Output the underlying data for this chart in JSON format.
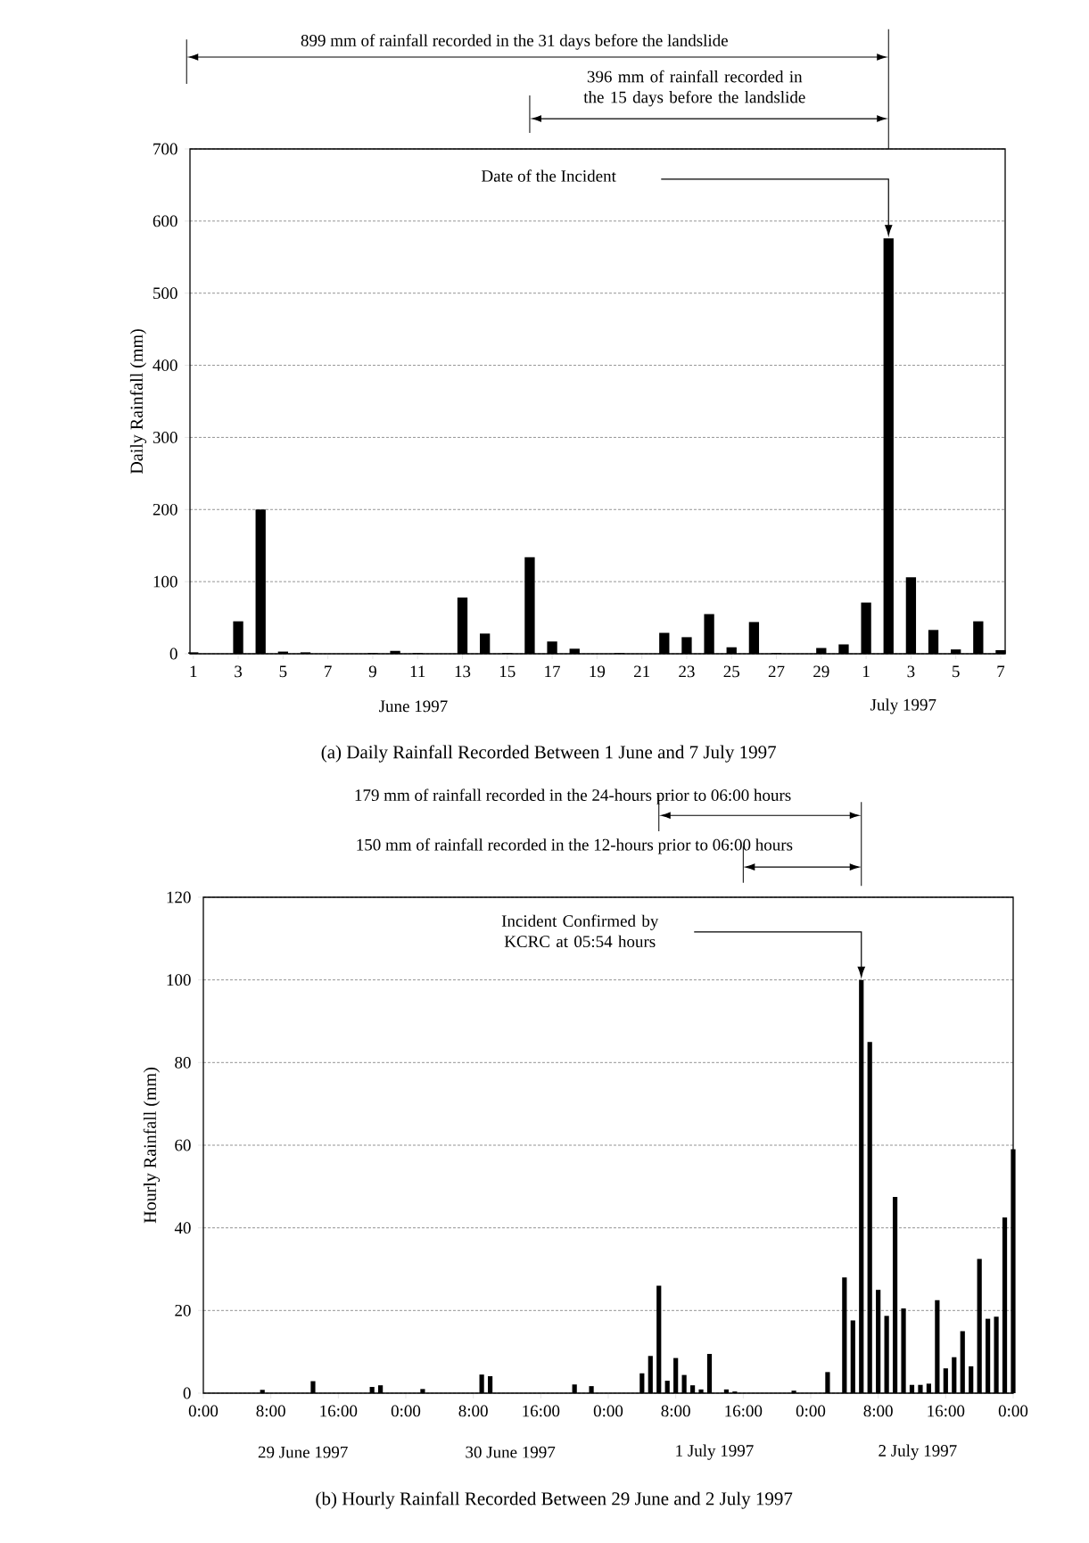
{
  "chart_data": [
    {
      "type": "bar",
      "title": "(a) Daily Rainfall Recorded Between 1 June and 7 July 1997",
      "ylabel": "Daily Rainfall (mm)",
      "categories": [
        "1",
        null,
        "3",
        null,
        "5",
        null,
        "7",
        null,
        "9",
        null,
        "11",
        null,
        "13",
        null,
        "15",
        null,
        "17",
        null,
        "19",
        null,
        "21",
        null,
        "23",
        null,
        "25",
        null,
        "27",
        null,
        "29",
        null,
        "1",
        null,
        "3",
        null,
        "5",
        null,
        "7"
      ],
      "values": [
        2,
        0,
        45,
        200,
        3,
        2,
        0,
        0,
        1,
        4,
        1,
        0,
        78,
        28,
        1,
        134,
        17,
        7,
        0,
        1,
        0,
        29,
        23,
        55,
        9,
        44,
        1,
        0,
        8,
        13,
        71,
        576,
        106,
        33,
        6,
        45,
        5
      ],
      "color": "#000000",
      "ylim": [
        0,
        700
      ],
      "yticks": [
        0,
        100,
        200,
        300,
        400,
        500,
        600,
        700
      ],
      "grid": "y",
      "annotations": [
        "899 mm of rainfall recorded in the 31 days before the landslide",
        "396 mm of rainfall recorded in the 15 days before the landslide",
        "Date of the Incident",
        "June 1997",
        "July 1997"
      ]
    },
    {
      "type": "bar",
      "title": "(b) Hourly Rainfall Recorded Between 29 June and 2 July 1997",
      "ylabel": "Hourly Rainfall (mm)",
      "x": [
        "1997-06-29T07:00",
        "1997-06-29T13:00",
        "1997-06-29T20:00",
        "1997-06-29T21:00",
        "1997-06-30T02:00",
        "1997-06-30T09:00",
        "1997-06-30T10:00",
        "1997-06-30T20:00",
        "1997-06-30T22:00",
        "1997-07-01T04:00",
        "1997-07-01T05:00",
        "1997-07-01T06:00",
        "1997-07-01T07:00",
        "1997-07-01T08:00",
        "1997-07-01T09:00",
        "1997-07-01T10:00",
        "1997-07-01T11:00",
        "1997-07-01T12:00",
        "1997-07-01T14:00",
        "1997-07-01T15:00",
        "1997-07-01T22:00",
        "1997-07-02T02:00",
        "1997-07-02T04:00",
        "1997-07-02T05:00",
        "1997-07-02T06:00",
        "1997-07-02T07:00",
        "1997-07-02T08:00",
        "1997-07-02T09:00",
        "1997-07-02T10:00",
        "1997-07-02T11:00",
        "1997-07-02T12:00",
        "1997-07-02T13:00",
        "1997-07-02T14:00",
        "1997-07-02T15:00",
        "1997-07-02T16:00",
        "1997-07-02T17:00",
        "1997-07-02T18:00",
        "1997-07-02T19:00",
        "1997-07-02T20:00",
        "1997-07-02T21:00",
        "1997-07-02T22:00",
        "1997-07-02T23:00",
        "1997-07-03T00:00"
      ],
      "values": [
        0.8,
        2.9,
        1.5,
        1.9,
        1,
        4.5,
        4.1,
        2.1,
        1.7,
        4.8,
        9,
        26,
        3,
        8.5,
        4.4,
        1.9,
        0.9,
        9.5,
        0.9,
        0.4,
        0.6,
        5.1,
        28,
        17.6,
        100,
        85,
        25,
        18.7,
        47.5,
        20.5,
        2,
        2,
        2.3,
        22.5,
        6,
        8.7,
        15,
        6.5,
        32.5,
        18,
        18.5,
        42.5,
        59
      ],
      "color": "#000000",
      "xlim": [
        "1997-06-29T00:00",
        "1997-07-03T00:00"
      ],
      "xticks": [
        {
          "value": "1997-06-29T00:00",
          "label": "0:00"
        },
        {
          "value": "1997-06-29T08:00",
          "label": "8:00"
        },
        {
          "value": "1997-06-29T16:00",
          "label": "16:00"
        },
        {
          "value": "1997-06-30T00:00",
          "label": "0:00"
        },
        {
          "value": "1997-06-30T08:00",
          "label": "8:00"
        },
        {
          "value": "1997-06-30T16:00",
          "label": "16:00"
        },
        {
          "value": "1997-07-01T00:00",
          "label": "0:00"
        },
        {
          "value": "1997-07-01T08:00",
          "label": "8:00"
        },
        {
          "value": "1997-07-01T16:00",
          "label": "16:00"
        },
        {
          "value": "1997-07-02T00:00",
          "label": "0:00"
        },
        {
          "value": "1997-07-02T08:00",
          "label": "8:00"
        },
        {
          "value": "1997-07-02T16:00",
          "label": "16:00"
        },
        {
          "value": "1997-07-03T00:00",
          "label": "0:00"
        }
      ],
      "ylim": [
        0,
        120
      ],
      "yticks": [
        0,
        20,
        40,
        60,
        80,
        100,
        120
      ],
      "grid": "y",
      "annotations": [
        "179 mm of rainfall recorded in the 24-hours prior to 06:00 hours",
        "150 mm of rainfall recorded in the 12-hours prior to 06:00 hours",
        "Incident Confirmed by KCRC at 05:54 hours",
        "29 June 1997",
        "30 June 1997",
        "1 July 1997",
        "2 July 1997"
      ]
    }
  ]
}
